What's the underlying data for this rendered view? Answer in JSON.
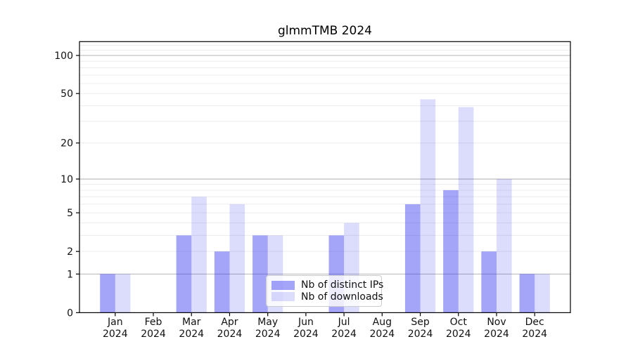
{
  "chart": {
    "title": "glmmTMB 2024",
    "background": "#ffffff",
    "spine_color": "#000000",
    "text_color": "#111111",
    "major_grid_color": "#b4b4b4",
    "minor_grid_color": "#ececec"
  },
  "chart_data": {
    "type": "bar",
    "title": "glmmTMB 2024",
    "yscale": "log1p",
    "grid": true,
    "categories": [
      "Jan",
      "Feb",
      "Mar",
      "Apr",
      "May",
      "Jun",
      "Jul",
      "Aug",
      "Sep",
      "Oct",
      "Nov",
      "Dec"
    ],
    "category_sublabel": "2024",
    "series": [
      {
        "name": "Nb of distinct IPs",
        "color": "rgba(47,47,239,0.44)",
        "values": [
          1,
          0,
          3,
          2,
          3,
          0,
          3,
          0,
          6,
          8,
          2,
          1
        ]
      },
      {
        "name": "Nb of downloads",
        "color": "rgba(47,47,239,0.17)",
        "values": [
          1,
          0,
          7,
          6,
          3,
          0,
          4,
          0,
          45,
          39,
          10,
          1
        ]
      }
    ],
    "y_ticks": [
      0,
      1,
      2,
      5,
      10,
      20,
      50,
      100
    ],
    "y_major_gridlines": [
      1,
      10,
      100
    ],
    "y_minor_gridlines": [
      2,
      3,
      4,
      5,
      6,
      7,
      8,
      9,
      20,
      30,
      40,
      50,
      60,
      70,
      80,
      90,
      110,
      120
    ],
    "ylim": [
      0,
      129
    ],
    "legend_position": "lower center"
  }
}
